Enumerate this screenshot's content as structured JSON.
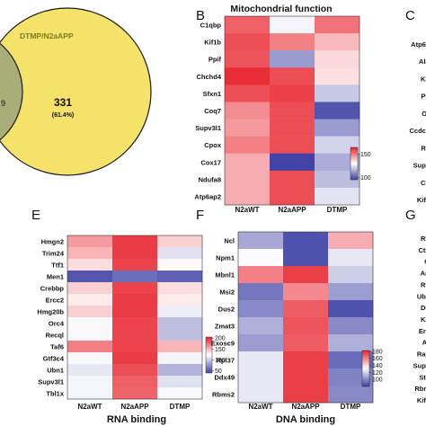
{
  "colors": {
    "low": "#3b3fa3",
    "mid": "#ffffff",
    "high": "#e8202a",
    "venn_right": "#f5e26a",
    "venn_left": "#a9ae78",
    "venn_stroke": "#1a1a1a"
  },
  "venn": {
    "label": "DTMP/N2aAPP",
    "count": "331",
    "percent": "(61.4%)",
    "left_partial": "9"
  },
  "panel_labels": {
    "b": "B",
    "c": "C",
    "e": "E",
    "f": "F",
    "g": "G"
  },
  "chart_data": [
    {
      "type": "heatmap",
      "panel": "B",
      "title": "Mitochondrial function",
      "columns": [
        "N2aWT",
        "N2aAPP",
        "DTMP"
      ],
      "rows": [
        "C1qbp",
        "Kif1b",
        "Ppif",
        "Chchd4",
        "Sfxn1",
        "Coq7",
        "Supv3l1",
        "Cpox",
        "Cox17",
        "Ndufa8",
        "Atp6ap2"
      ],
      "values": [
        [
          155,
          128,
          152
        ],
        [
          158,
          150,
          141
        ],
        [
          157,
          112,
          136
        ],
        [
          163,
          158,
          135
        ],
        [
          158,
          160,
          120
        ],
        [
          148,
          158,
          99
        ],
        [
          146,
          158,
          112
        ],
        [
          150,
          158,
          122
        ],
        [
          143,
          96,
          115
        ],
        [
          143,
          158,
          118
        ],
        [
          143,
          158,
          125
        ]
      ],
      "scale": {
        "min": 95,
        "max": 165,
        "ticks": [
          150,
          100
        ]
      }
    },
    {
      "type": "heatmap",
      "panel": "E",
      "title": "RNA binding",
      "columns": [
        "N2aWT",
        "N2aAPP",
        "DTMP"
      ],
      "rows": [
        "Hmgn2",
        "Trim24",
        "Ttf1",
        "Men1",
        "Crebbp",
        "Ercc2",
        "Hmg20b",
        "Orc4",
        "Recql",
        "Taf6",
        "Gtf3c4",
        "Ubn1",
        "Supv3l1",
        "Tbl1x"
      ],
      "values": [
        [
          160,
          195,
          140
        ],
        [
          150,
          195,
          110
        ],
        [
          135,
          192,
          125
        ],
        [
          50,
          60,
          55
        ],
        [
          140,
          192,
          135
        ],
        [
          130,
          195,
          130
        ],
        [
          140,
          195,
          115
        ],
        [
          120,
          192,
          95
        ],
        [
          120,
          192,
          95
        ],
        [
          170,
          192,
          150
        ],
        [
          120,
          195,
          118
        ],
        [
          112,
          188,
          90
        ],
        [
          118,
          182,
          110
        ],
        [
          118,
          180,
          120
        ]
      ],
      "scale": {
        "min": 40,
        "max": 205,
        "ticks": [
          200,
          150,
          100,
          50
        ]
      }
    },
    {
      "type": "heatmap",
      "panel": "F",
      "title": "DNA binding",
      "columns": [
        "N2aWT",
        "N2aAPP",
        "DTMP"
      ],
      "rows": [
        "Ncl",
        "Npm1",
        "Mbnl1",
        "Msi2",
        "Dus2",
        "Zmat3",
        "Exosc9",
        "Rpl37",
        "Ddx49",
        "Rbms2"
      ],
      "values": [
        [
          108,
          85,
          150
        ],
        [
          130,
          85,
          125
        ],
        [
          160,
          175,
          118
        ],
        [
          95,
          158,
          105
        ],
        [
          100,
          168,
          85
        ],
        [
          110,
          170,
          100
        ],
        [
          105,
          168,
          110
        ],
        [
          125,
          175,
          92
        ],
        [
          125,
          175,
          98
        ],
        [
          125,
          175,
          100
        ]
      ],
      "scale": {
        "min": 80,
        "max": 182,
        "ticks": [
          180,
          160,
          140,
          120,
          100
        ]
      }
    }
  ],
  "partial_labels": {
    "c": [
      "Atp6a",
      "Ald",
      "Kif",
      "Pp",
      "Or",
      "Ccdc1",
      "Re",
      "Supv",
      "Cp",
      "Kif1"
    ],
    "g": [
      "Rh",
      "Ctp",
      "G",
      "Arl",
      "Rh",
      "Ube",
      "Du",
      "Kif",
      "Erc",
      "Ar",
      "Rab",
      "Supv",
      "Stk",
      "Rbm",
      "Kif1"
    ]
  }
}
